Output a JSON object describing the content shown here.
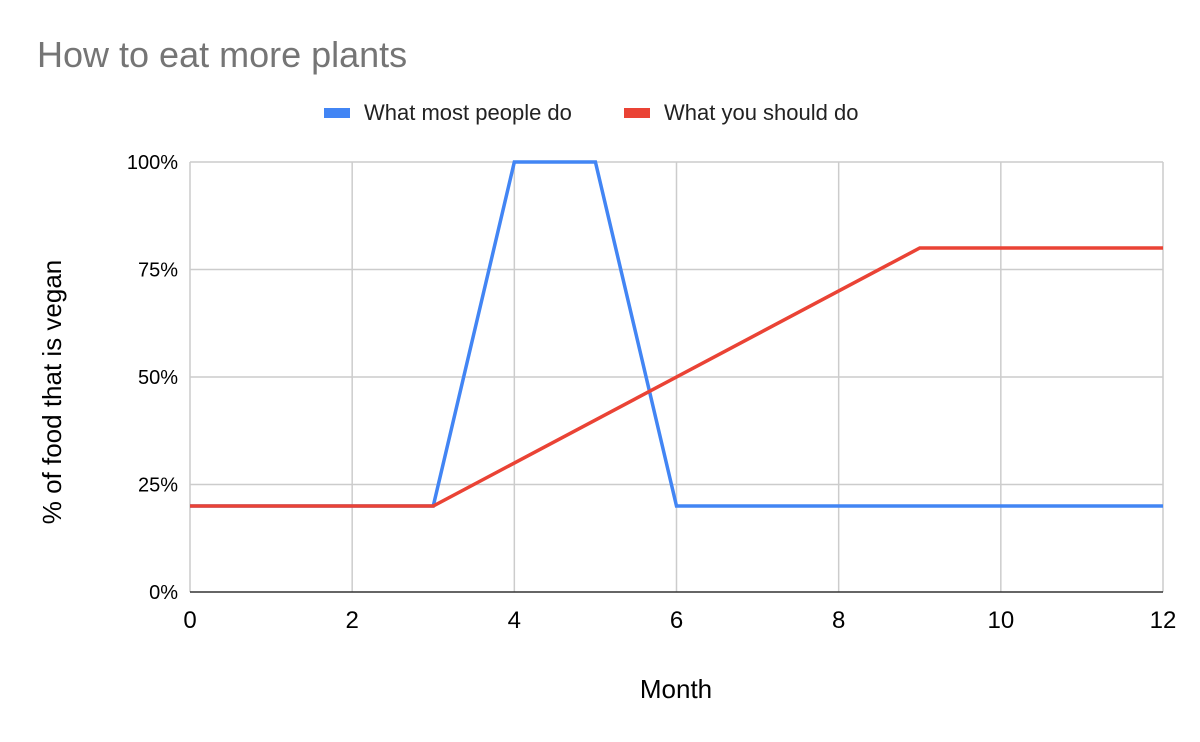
{
  "chart_data": {
    "type": "line",
    "title": "How to eat more plants",
    "xlabel": "Month",
    "ylabel": "% of food that is vegan",
    "xlim": [
      0,
      12
    ],
    "ylim": [
      0,
      100
    ],
    "x_ticks": [
      0,
      2,
      4,
      6,
      8,
      10,
      12
    ],
    "y_ticks": [
      0,
      25,
      50,
      75,
      100
    ],
    "y_tick_labels": [
      "0%",
      "25%",
      "50%",
      "75%",
      "100%"
    ],
    "grid": true,
    "legend": "top",
    "series": [
      {
        "name": "What most people do",
        "color": "#4285f4",
        "points": [
          [
            0,
            20
          ],
          [
            3,
            20
          ],
          [
            4,
            100
          ],
          [
            5,
            100
          ],
          [
            6,
            20
          ],
          [
            12,
            20
          ]
        ]
      },
      {
        "name": "What you should do",
        "color": "#ea4335",
        "points": [
          [
            0,
            20
          ],
          [
            3,
            20
          ],
          [
            9,
            80
          ],
          [
            12,
            80
          ]
        ]
      }
    ]
  }
}
